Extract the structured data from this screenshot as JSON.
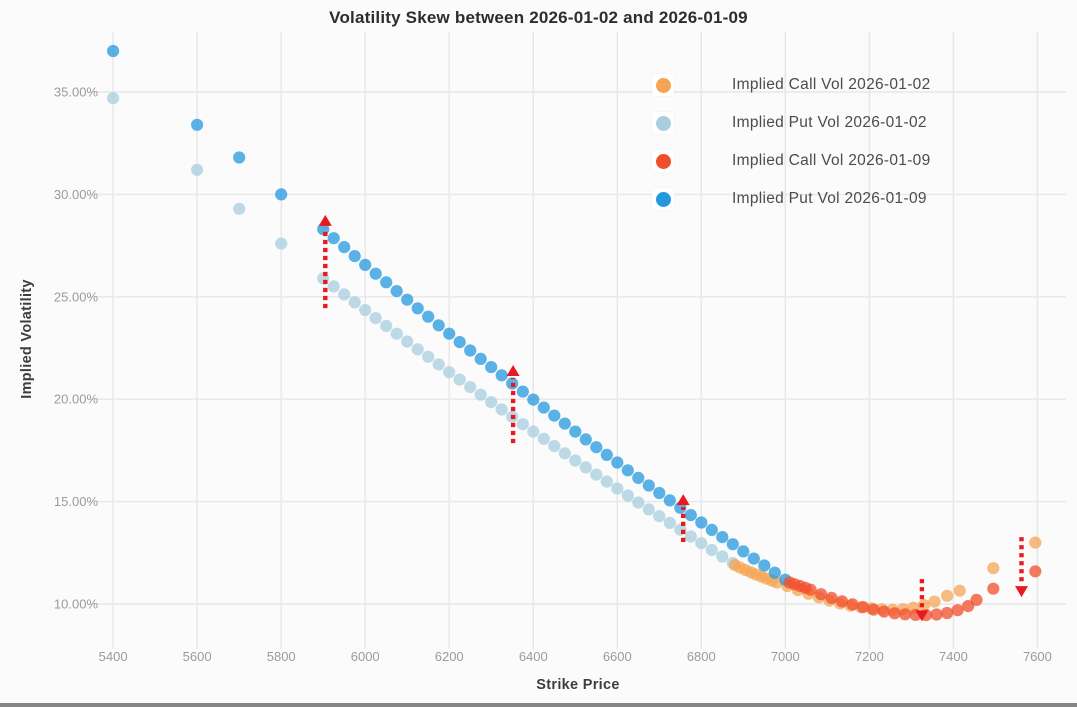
{
  "chart_data": {
    "type": "scatter",
    "title": "Volatility Skew between 2026-01-02 and 2026-01-09",
    "xlabel": "Strike Price",
    "ylabel": "Implied Volatility",
    "xlim": [
      5345,
      7668
    ],
    "ylim": [
      8.0,
      37.93
    ],
    "grid": true,
    "legend_position": "top-right",
    "x_ticks": [
      5400,
      5600,
      5800,
      6000,
      6200,
      6400,
      6600,
      6800,
      7000,
      7200,
      7400,
      7600
    ],
    "x_tick_labels": [
      "5400",
      "5600",
      "5800",
      "6000",
      "6200",
      "6400",
      "6600",
      "6800",
      "7000",
      "7200",
      "7400",
      "7600"
    ],
    "y_ticks": [
      10,
      15,
      20,
      25,
      30,
      35
    ],
    "y_tick_labels": [
      "10.00%",
      "15.00%",
      "20.00%",
      "25.00%",
      "30.00%",
      "35.00%"
    ],
    "annotation_color": "#e8191f",
    "point_opacity": 0.75,
    "series": [
      {
        "name": "Implied Call Vol 2026-01-02",
        "color": "#f5a455",
        "points": [
          [
            6880,
            11.9
          ],
          [
            6892,
            11.78
          ],
          [
            6905,
            11.66
          ],
          [
            6918,
            11.55
          ],
          [
            6930,
            11.44
          ],
          [
            6943,
            11.34
          ],
          [
            6955,
            11.24
          ],
          [
            6968,
            11.14
          ],
          [
            6980,
            11.05
          ],
          [
            7005,
            10.88
          ],
          [
            7030,
            10.68
          ],
          [
            7055,
            10.5
          ],
          [
            7080,
            10.33
          ],
          [
            7105,
            10.17
          ],
          [
            7130,
            10.03
          ],
          [
            7155,
            9.92
          ],
          [
            7180,
            9.84
          ],
          [
            7205,
            9.78
          ],
          [
            7230,
            9.74
          ],
          [
            7255,
            9.72
          ],
          [
            7280,
            9.75
          ],
          [
            7305,
            9.82
          ],
          [
            7330,
            9.95
          ],
          [
            7355,
            10.12
          ],
          [
            7385,
            10.4
          ],
          [
            7415,
            10.65
          ],
          [
            7495,
            11.75
          ],
          [
            7595,
            13.0
          ]
        ]
      },
      {
        "name": "Implied Put Vol 2026-01-02",
        "color": "#a8cedf",
        "points": [
          [
            5400,
            34.7
          ],
          [
            5600,
            31.2
          ],
          [
            5700,
            29.3
          ],
          [
            5800,
            27.6
          ],
          [
            5900,
            25.9
          ],
          [
            5925,
            25.51
          ],
          [
            5950,
            25.12
          ],
          [
            5975,
            24.73
          ],
          [
            6000,
            24.35
          ],
          [
            6025,
            23.96
          ],
          [
            6050,
            23.58
          ],
          [
            6075,
            23.2
          ],
          [
            6100,
            22.82
          ],
          [
            6125,
            22.44
          ],
          [
            6150,
            22.07
          ],
          [
            6175,
            21.7
          ],
          [
            6200,
            21.32
          ],
          [
            6225,
            20.96
          ],
          [
            6250,
            20.59
          ],
          [
            6275,
            20.22
          ],
          [
            6300,
            19.86
          ],
          [
            6325,
            19.5
          ],
          [
            6350,
            19.14
          ],
          [
            6375,
            18.78
          ],
          [
            6400,
            18.42
          ],
          [
            6425,
            18.07
          ],
          [
            6450,
            17.71
          ],
          [
            6475,
            17.36
          ],
          [
            6500,
            17.01
          ],
          [
            6525,
            16.67
          ],
          [
            6550,
            16.32
          ],
          [
            6575,
            15.98
          ],
          [
            6600,
            15.64
          ],
          [
            6625,
            15.3
          ],
          [
            6650,
            14.96
          ],
          [
            6675,
            14.62
          ],
          [
            6700,
            14.29
          ],
          [
            6725,
            13.96
          ],
          [
            6750,
            13.63
          ],
          [
            6775,
            13.3
          ],
          [
            6800,
            12.97
          ],
          [
            6825,
            12.64
          ],
          [
            6850,
            12.32
          ],
          [
            6875,
            12.0
          ]
        ]
      },
      {
        "name": "Implied Call Vol 2026-01-09",
        "color": "#f04f2e",
        "points": [
          [
            7010,
            11.05
          ],
          [
            7022,
            10.97
          ],
          [
            7035,
            10.88
          ],
          [
            7048,
            10.79
          ],
          [
            7060,
            10.7
          ],
          [
            7085,
            10.48
          ],
          [
            7110,
            10.3
          ],
          [
            7135,
            10.13
          ],
          [
            7160,
            9.98
          ],
          [
            7185,
            9.85
          ],
          [
            7210,
            9.73
          ],
          [
            7235,
            9.63
          ],
          [
            7260,
            9.55
          ],
          [
            7285,
            9.5
          ],
          [
            7310,
            9.47
          ],
          [
            7335,
            9.46
          ],
          [
            7360,
            9.49
          ],
          [
            7385,
            9.56
          ],
          [
            7410,
            9.7
          ],
          [
            7435,
            9.9
          ],
          [
            7455,
            10.2
          ],
          [
            7495,
            10.75
          ],
          [
            7595,
            11.6
          ]
        ]
      },
      {
        "name": "Implied Put Vol 2026-01-09",
        "color": "#2498df",
        "points": [
          [
            5400,
            37.0
          ],
          [
            5600,
            33.4
          ],
          [
            5700,
            31.8
          ],
          [
            5800,
            30.0
          ],
          [
            5900,
            28.3
          ],
          [
            5925,
            27.86
          ],
          [
            5950,
            27.43
          ],
          [
            5975,
            26.99
          ],
          [
            6000,
            26.56
          ],
          [
            6025,
            26.13
          ],
          [
            6050,
            25.71
          ],
          [
            6075,
            25.28
          ],
          [
            6100,
            24.86
          ],
          [
            6125,
            24.44
          ],
          [
            6150,
            24.03
          ],
          [
            6175,
            23.61
          ],
          [
            6200,
            23.2
          ],
          [
            6225,
            22.79
          ],
          [
            6250,
            22.38
          ],
          [
            6275,
            21.97
          ],
          [
            6300,
            21.57
          ],
          [
            6325,
            21.17
          ],
          [
            6350,
            20.77
          ],
          [
            6375,
            20.37
          ],
          [
            6400,
            19.98
          ],
          [
            6425,
            19.59
          ],
          [
            6450,
            19.2
          ],
          [
            6475,
            18.81
          ],
          [
            6500,
            18.42
          ],
          [
            6525,
            18.04
          ],
          [
            6550,
            17.66
          ],
          [
            6575,
            17.28
          ],
          [
            6600,
            16.91
          ],
          [
            6625,
            16.53
          ],
          [
            6650,
            16.16
          ],
          [
            6675,
            15.79
          ],
          [
            6700,
            15.42
          ],
          [
            6725,
            15.06
          ],
          [
            6750,
            14.7
          ],
          [
            6775,
            14.34
          ],
          [
            6800,
            13.98
          ],
          [
            6825,
            13.62
          ],
          [
            6850,
            13.27
          ],
          [
            6875,
            12.92
          ],
          [
            6900,
            12.57
          ],
          [
            6925,
            12.22
          ],
          [
            6950,
            11.88
          ],
          [
            6975,
            11.53
          ],
          [
            7000,
            11.19
          ]
        ]
      }
    ],
    "annotations": [
      {
        "type": "arrow",
        "strike": 5905,
        "from_vol": 24.45,
        "to_vol": 29.0,
        "direction": "up"
      },
      {
        "type": "arrow",
        "strike": 6352,
        "from_vol": 17.86,
        "to_vol": 21.67,
        "direction": "up"
      },
      {
        "type": "arrow",
        "strike": 6757,
        "from_vol": 13.03,
        "to_vol": 15.37,
        "direction": "up"
      },
      {
        "type": "arrow",
        "strike": 7325,
        "from_vol": 11.22,
        "to_vol": 9.15,
        "direction": "down"
      },
      {
        "type": "arrow",
        "strike": 7562,
        "from_vol": 13.27,
        "to_vol": 10.34,
        "direction": "down"
      }
    ]
  }
}
